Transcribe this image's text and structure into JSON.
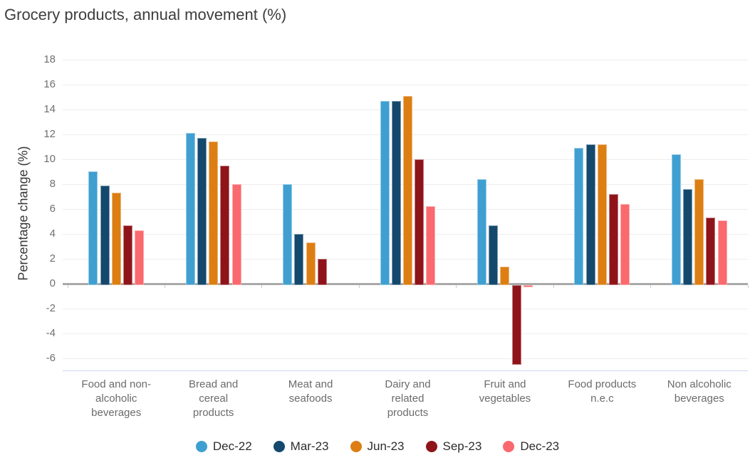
{
  "title": "Grocery products, annual movement (%)",
  "chart_data": {
    "type": "bar",
    "title": "Grocery products, annual movement (%)",
    "xlabel": "",
    "ylabel": "Percentage change (%)",
    "ylim": [
      -7,
      18
    ],
    "yticks": [
      18,
      16,
      14,
      12,
      10,
      8,
      6,
      4,
      2,
      0,
      -2,
      -4,
      -6
    ],
    "grid": true,
    "legend_position": "bottom",
    "categories": [
      "Food and non-alcoholic beverages",
      "Bread and cereal products",
      "Meat and seafoods",
      "Dairy and related products",
      "Fruit and vegetables",
      "Food products n.e.c",
      "Non alcoholic beverages"
    ],
    "category_label_lines": [
      [
        "Food and non-",
        "alcoholic",
        "beverages"
      ],
      [
        "Bread and",
        "cereal",
        "products"
      ],
      [
        "Meat and",
        "seafoods"
      ],
      [
        "Dairy and",
        "related",
        "products"
      ],
      [
        "Fruit and",
        "vegetables"
      ],
      [
        "Food products",
        "n.e.c"
      ],
      [
        "Non alcoholic",
        "beverages"
      ]
    ],
    "series": [
      {
        "name": "Dec-22",
        "color": "#3f9fd1",
        "values": [
          9.1,
          12.2,
          8.1,
          14.8,
          8.5,
          11.0,
          10.5
        ]
      },
      {
        "name": "Mar-23",
        "color": "#14496d",
        "values": [
          8.0,
          11.8,
          4.1,
          14.8,
          4.8,
          11.3,
          7.7
        ]
      },
      {
        "name": "Jun-23",
        "color": "#dd7e13",
        "values": [
          7.4,
          11.5,
          3.4,
          15.2,
          1.5,
          11.3,
          8.5
        ]
      },
      {
        "name": "Sep-23",
        "color": "#8f141a",
        "values": [
          4.8,
          9.6,
          2.1,
          10.1,
          -6.4,
          7.3,
          5.4
        ]
      },
      {
        "name": "Dec-23",
        "color": "#fa696d",
        "values": [
          4.4,
          8.1,
          0,
          6.3,
          -0.2,
          6.5,
          5.2
        ]
      }
    ],
    "style_colors": {
      "gridline": "#ededed",
      "zero_line": "#a9a9a9",
      "plot_bottom_border": "#ccd7ea",
      "title_text": "#3d3d3d",
      "axis_label_text": "#383838",
      "tick_label_text": "#6f6f6f"
    }
  }
}
